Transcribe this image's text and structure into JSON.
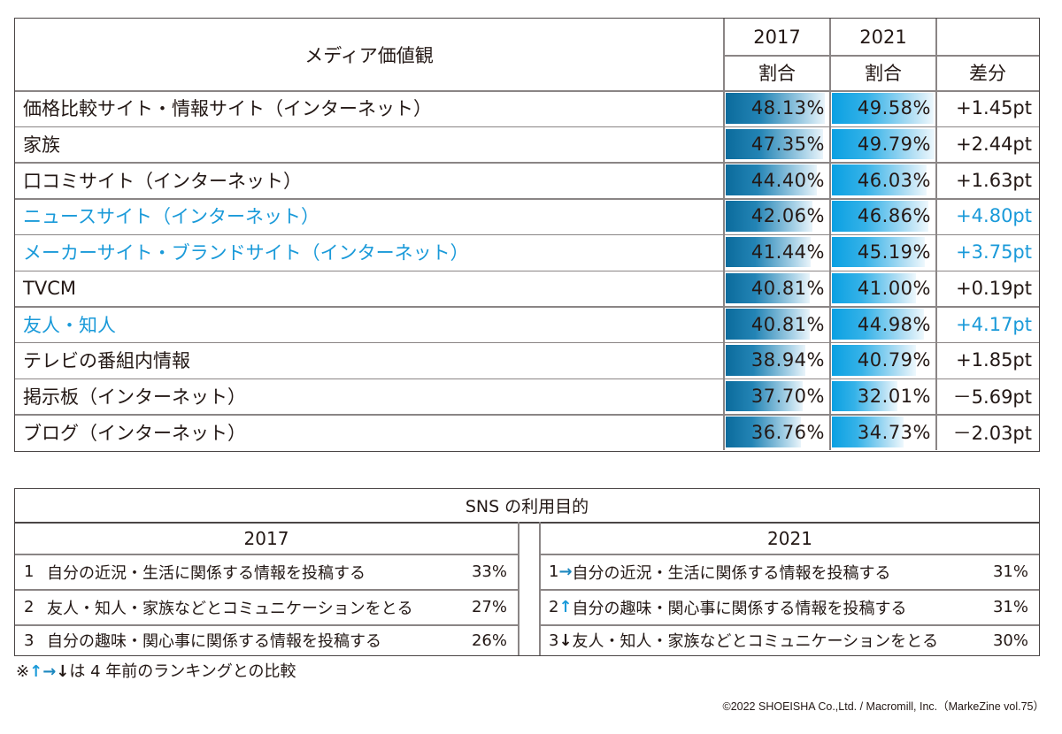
{
  "chart_data": {
    "type": "table",
    "title": "メディア価値観",
    "columns": [
      {
        "year": "2017",
        "sub": "割合"
      },
      {
        "year": "2021",
        "sub": "割合"
      },
      {
        "year": "",
        "sub": "差分"
      }
    ],
    "rows": [
      {
        "label": "価格比較サイト・情報サイト（インターネット）",
        "v2017": 48.13,
        "v2021": 49.58,
        "v2017_text": "48.13%",
        "v2021_text": "49.58%",
        "diff": "+1.45pt",
        "highlight": false
      },
      {
        "label": "家族",
        "v2017": 47.35,
        "v2021": 49.79,
        "v2017_text": "47.35%",
        "v2021_text": "49.79%",
        "diff": "+2.44pt",
        "highlight": false
      },
      {
        "label": "口コミサイト（インターネット）",
        "v2017": 44.4,
        "v2021": 46.03,
        "v2017_text": "44.40%",
        "v2021_text": "46.03%",
        "diff": "+1.63pt",
        "highlight": false
      },
      {
        "label": "ニュースサイト（インターネット）",
        "v2017": 42.06,
        "v2021": 46.86,
        "v2017_text": "42.06%",
        "v2021_text": "46.86%",
        "diff": "+4.80pt",
        "highlight": true
      },
      {
        "label": "メーカーサイト・ブランドサイト（インターネット）",
        "v2017": 41.44,
        "v2021": 45.19,
        "v2017_text": "41.44%",
        "v2021_text": "45.19%",
        "diff": "+3.75pt",
        "highlight": true
      },
      {
        "label": "TVCM",
        "v2017": 40.81,
        "v2021": 41.0,
        "v2017_text": "40.81%",
        "v2021_text": "41.00%",
        "diff": "+0.19pt",
        "highlight": false
      },
      {
        "label": "友人・知人",
        "v2017": 40.81,
        "v2021": 44.98,
        "v2017_text": "40.81%",
        "v2021_text": "44.98%",
        "diff": "+4.17pt",
        "highlight": true
      },
      {
        "label": "テレビの番組内情報",
        "v2017": 38.94,
        "v2021": 40.79,
        "v2017_text": "38.94%",
        "v2021_text": "40.79%",
        "diff": "+1.85pt",
        "highlight": false
      },
      {
        "label": "掲示板（インターネット）",
        "v2017": 37.7,
        "v2021": 32.01,
        "v2017_text": "37.70%",
        "v2021_text": "32.01%",
        "diff": "－5.69pt",
        "highlight": false
      },
      {
        "label": "ブログ（インターネット）",
        "v2017": 36.76,
        "v2021": 34.73,
        "v2017_text": "36.76%",
        "v2021_text": "34.73%",
        "diff": "－2.03pt",
        "highlight": false
      }
    ],
    "bar_scale_max": 50
  },
  "colors": {
    "highlight": "#1a9ad9",
    "bar_2017": "#0b6b9c",
    "bar_2021": "#0aa0e2",
    "arrow_up": "#1a9ad9",
    "arrow_right": "#1b87bf",
    "arrow_down": "#231815"
  },
  "sns": {
    "title": "SNS の利用目的",
    "left": {
      "year": "2017",
      "items": [
        {
          "rank": "1",
          "text": "自分の近況・生活に関係する情報を投稿する",
          "pct": "33%"
        },
        {
          "rank": "2",
          "text": "友人・知人・家族などとコミュニケーションをとる",
          "pct": "27%"
        },
        {
          "rank": "3",
          "text": "自分の趣味・関心事に関係する情報を投稿する",
          "pct": "26%"
        }
      ]
    },
    "right": {
      "year": "2021",
      "items": [
        {
          "rank": "1",
          "arrow": "→",
          "arrow_type": "right",
          "text": "自分の近況・生活に関係する情報を投稿する",
          "pct": "31%"
        },
        {
          "rank": "2",
          "arrow": "↑",
          "arrow_type": "up",
          "text": "自分の趣味・関心事に関係する情報を投稿する",
          "pct": "31%"
        },
        {
          "rank": "3",
          "arrow": "↓",
          "arrow_type": "down",
          "text": "友人・知人・家族などとコミュニケーションをとる",
          "pct": "30%"
        }
      ]
    }
  },
  "note": {
    "prefix": "※",
    "arrow_up": "↑",
    "arrow_right": "→",
    "arrow_down": "↓",
    "text": "は 4 年前のランキングとの比較"
  },
  "copyright": "©2022 SHOEISHA Co.,Ltd. / Macromill, Inc.（MarkeZine vol.75）"
}
